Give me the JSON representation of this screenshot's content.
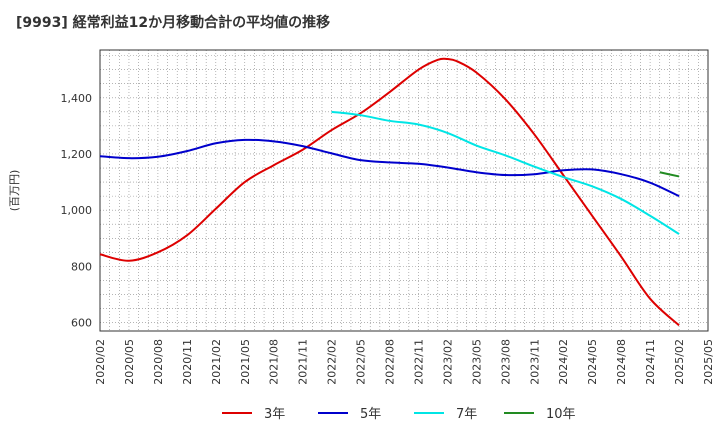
{
  "title": "[9993]  経常利益12か月移動合計の平均値の推移",
  "chart_data": {
    "type": "line",
    "ylabel": "(百万円)",
    "ylim": [
      570,
      1570
    ],
    "y_ticks": [
      600,
      800,
      1000,
      1200,
      1400
    ],
    "y_tick_labels": [
      "600",
      "800",
      "1,000",
      "1,200",
      "1,400"
    ],
    "x_ticks": [
      "2020/02",
      "2020/05",
      "2020/08",
      "2020/11",
      "2021/02",
      "2021/05",
      "2021/08",
      "2021/11",
      "2022/02",
      "2022/05",
      "2022/08",
      "2022/11",
      "2023/02",
      "2023/05",
      "2023/08",
      "2023/11",
      "2024/02",
      "2024/05",
      "2024/08",
      "2024/11",
      "2025/02",
      "2025/05"
    ],
    "grid": true,
    "legend_position": "bottom",
    "series": [
      {
        "name": "3年",
        "color": "#dd0000",
        "x": [
          "2020/02",
          "2020/05",
          "2020/08",
          "2020/11",
          "2021/02",
          "2021/05",
          "2021/08",
          "2021/11",
          "2022/02",
          "2022/05",
          "2022/08",
          "2022/11",
          "2023/01",
          "2023/02",
          "2023/03",
          "2023/05",
          "2023/08",
          "2023/11",
          "2024/02",
          "2024/05",
          "2024/08",
          "2024/11",
          "2025/02"
        ],
        "values": [
          843,
          820,
          850,
          910,
          1005,
          1100,
          1160,
          1215,
          1285,
          1345,
          1420,
          1500,
          1535,
          1538,
          1530,
          1490,
          1395,
          1270,
          1125,
          980,
          835,
          685,
          590
        ]
      },
      {
        "name": "5年",
        "color": "#0000cc",
        "x": [
          "2020/02",
          "2020/05",
          "2020/08",
          "2020/11",
          "2021/02",
          "2021/05",
          "2021/08",
          "2021/11",
          "2022/02",
          "2022/05",
          "2022/08",
          "2022/11",
          "2023/02",
          "2023/05",
          "2023/08",
          "2023/11",
          "2024/02",
          "2024/05",
          "2024/08",
          "2024/11",
          "2025/02"
        ],
        "values": [
          1192,
          1185,
          1190,
          1210,
          1238,
          1250,
          1245,
          1228,
          1202,
          1178,
          1170,
          1165,
          1152,
          1135,
          1125,
          1128,
          1142,
          1145,
          1128,
          1098,
          1050
        ]
      },
      {
        "name": "7年",
        "color": "#00e5e5",
        "x": [
          "2022/02",
          "2022/05",
          "2022/08",
          "2022/11",
          "2023/02",
          "2023/05",
          "2023/08",
          "2023/11",
          "2024/02",
          "2024/05",
          "2024/08",
          "2024/11",
          "2025/02"
        ],
        "values": [
          1350,
          1338,
          1318,
          1305,
          1275,
          1230,
          1195,
          1155,
          1118,
          1085,
          1040,
          980,
          915
        ]
      },
      {
        "name": "10年",
        "color": "#228b22",
        "x": [
          "2024/12",
          "2025/02"
        ],
        "values": [
          1135,
          1120
        ]
      }
    ]
  }
}
